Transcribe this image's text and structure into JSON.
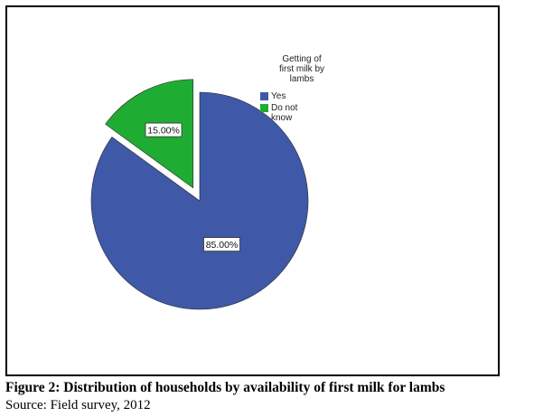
{
  "chart_data": {
    "type": "pie",
    "legend_title": "Getting of\nfirst milk by\nlambs",
    "legend_position": "top-right",
    "slices": [
      {
        "label": "Yes",
        "value": 85.0,
        "data_label": "85.00%",
        "color": "#3f58a8"
      },
      {
        "label": "Do not\nknow",
        "value": 15.0,
        "data_label": "15.00%",
        "color": "#1fac33",
        "exploded": true
      }
    ]
  },
  "caption": {
    "title": "Figure 2: Distribution of households by availability of first milk for lambs",
    "source": "Source: Field survey, 2012"
  }
}
